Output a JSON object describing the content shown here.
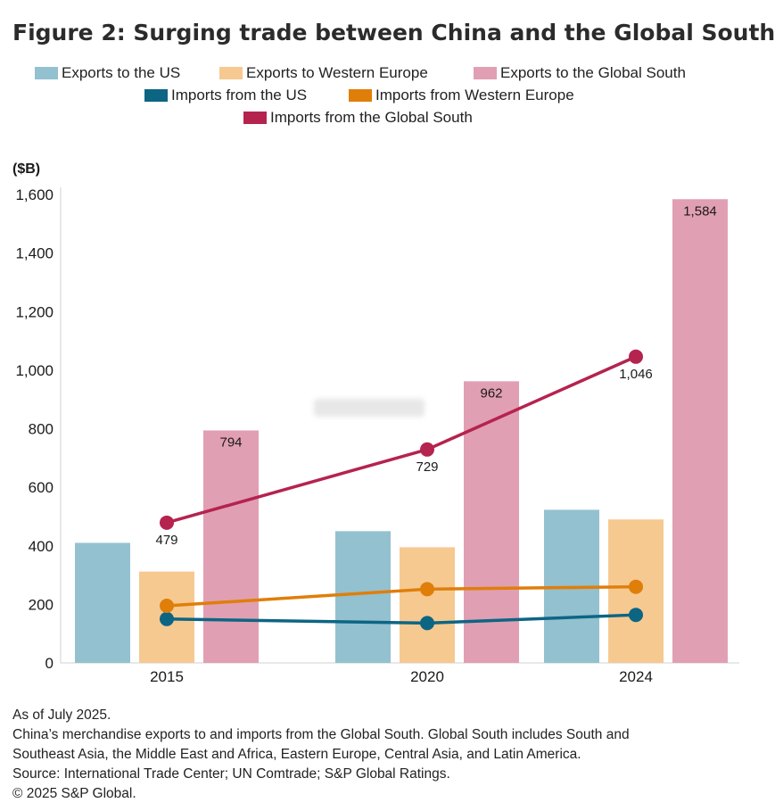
{
  "title": "Figure 2: Surging trade between China and the Global South",
  "legend": [
    {
      "label": "Exports to the US",
      "color": "#93c1cf"
    },
    {
      "label": "Exports to Western Europe",
      "color": "#f6c991"
    },
    {
      "label": "Exports to the Global South",
      "color": "#e19fb3"
    },
    {
      "label": "Imports from the US",
      "color": "#0d6584"
    },
    {
      "label": "Imports from Western Europe",
      "color": "#e07e0a"
    },
    {
      "label": "Imports from the Global South",
      "color": "#b5234f"
    }
  ],
  "chart_data": {
    "type": "bar",
    "ylabel": "($B)",
    "ylim": [
      0,
      1600
    ],
    "yticks": [
      0,
      200,
      400,
      600,
      800,
      1000,
      1200,
      1400,
      1600
    ],
    "ytick_labels": [
      "0",
      "200",
      "400",
      "600",
      "800",
      "1,000",
      "1,200",
      "1,400",
      "1,600"
    ],
    "categories": [
      "2015",
      "2020",
      "2024"
    ],
    "bar_series": [
      {
        "name": "Exports to the US",
        "color": "#93c1cf",
        "values": [
          410,
          450,
          523
        ],
        "labels": [
          "",
          "",
          ""
        ]
      },
      {
        "name": "Exports to Western Europe",
        "color": "#f6c991",
        "values": [
          312,
          395,
          490
        ],
        "labels": [
          "",
          "",
          ""
        ]
      },
      {
        "name": "Exports to the Global South",
        "color": "#e19fb3",
        "values": [
          794,
          962,
          1584
        ],
        "labels": [
          "794",
          "962",
          "1,584"
        ]
      }
    ],
    "line_series": [
      {
        "name": "Imports from the US",
        "color": "#0d6584",
        "values": [
          150,
          136,
          164
        ],
        "labels": [
          "",
          "",
          ""
        ]
      },
      {
        "name": "Imports from Western Europe",
        "color": "#e07e0a",
        "values": [
          195,
          252,
          260
        ],
        "labels": [
          "",
          "",
          ""
        ]
      },
      {
        "name": "Imports from the Global South",
        "color": "#b5234f",
        "values": [
          479,
          729,
          1046
        ],
        "labels": [
          "479",
          "729",
          "1,046"
        ]
      }
    ]
  },
  "notes": [
    "As of July 2025.",
    "China’s merchandise exports to and imports from the Global South. Global South includes South and",
    "Southeast Asia, the Middle East and Africa, Eastern Europe, Central Asia, and Latin America.",
    "Source: International Trade Center; UN Comtrade; S&P Global Ratings.",
    "© 2025 S&P Global."
  ]
}
